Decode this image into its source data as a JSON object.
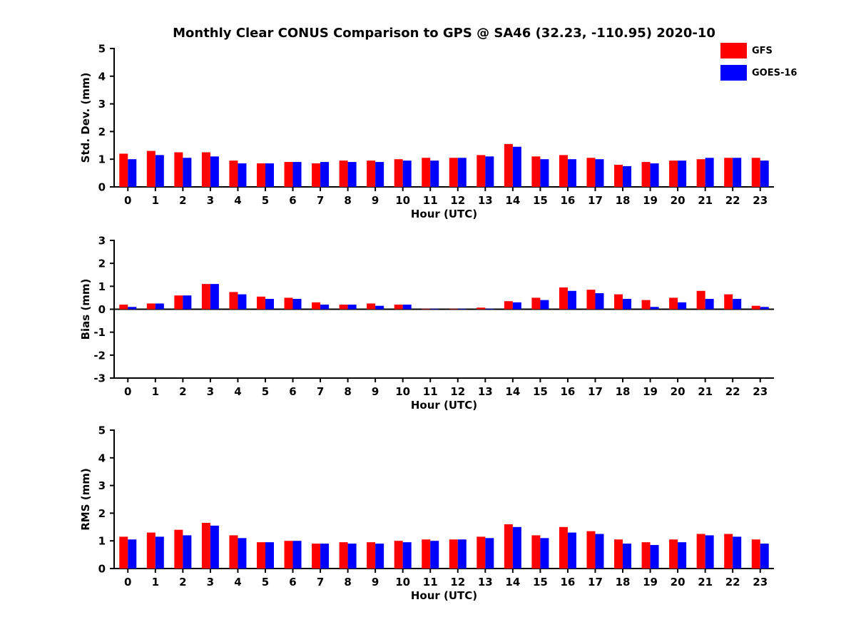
{
  "title": "Monthly Clear CONUS Comparison to GPS @ SA46 (32.23, -110.95) 2020-10",
  "legend": {
    "position": "top-right",
    "items": [
      {
        "label": "GFS",
        "color": "#ff0000"
      },
      {
        "label": "GOES-16",
        "color": "#0000ff"
      }
    ]
  },
  "chart_data": [
    {
      "type": "bar",
      "title": "Monthly Clear CONUS Comparison to GPS @ SA46 (32.23, -110.95) 2020-10",
      "categories": [
        "0",
        "1",
        "2",
        "3",
        "4",
        "5",
        "6",
        "7",
        "8",
        "9",
        "10",
        "11",
        "12",
        "13",
        "14",
        "15",
        "16",
        "17",
        "18",
        "19",
        "20",
        "21",
        "22",
        "23"
      ],
      "series": [
        {
          "name": "GFS",
          "color": "#ff0000",
          "values": [
            1.2,
            1.3,
            1.25,
            1.25,
            0.95,
            0.85,
            0.9,
            0.85,
            0.95,
            0.95,
            1.0,
            1.05,
            1.05,
            1.15,
            1.55,
            1.1,
            1.15,
            1.05,
            0.8,
            0.9,
            0.95,
            1.0,
            1.05,
            1.05
          ]
        },
        {
          "name": "GOES-16",
          "color": "#0000ff",
          "values": [
            1.0,
            1.15,
            1.05,
            1.1,
            0.85,
            0.85,
            0.9,
            0.9,
            0.9,
            0.9,
            0.95,
            0.95,
            1.05,
            1.1,
            1.45,
            1.0,
            1.0,
            1.0,
            0.75,
            0.85,
            0.95,
            1.05,
            1.05,
            0.95
          ]
        }
      ],
      "xlabel": "Hour (UTC)",
      "ylabel": "Std. Dev. (mm)",
      "ylim": [
        0,
        5
      ],
      "yticks": [
        0,
        1,
        2,
        3,
        4,
        5
      ],
      "grid": false,
      "legend_position": "top-right"
    },
    {
      "type": "bar",
      "title": "",
      "categories": [
        "0",
        "1",
        "2",
        "3",
        "4",
        "5",
        "6",
        "7",
        "8",
        "9",
        "10",
        "11",
        "12",
        "13",
        "14",
        "15",
        "16",
        "17",
        "18",
        "19",
        "20",
        "21",
        "22",
        "23"
      ],
      "series": [
        {
          "name": "GFS",
          "color": "#ff0000",
          "values": [
            0.2,
            0.25,
            0.6,
            1.1,
            0.75,
            0.55,
            0.5,
            0.3,
            0.2,
            0.25,
            0.2,
            0.02,
            0.02,
            0.07,
            0.35,
            0.5,
            0.95,
            0.85,
            0.65,
            0.4,
            0.5,
            0.8,
            0.65,
            0.15
          ]
        },
        {
          "name": "GOES-16",
          "color": "#0000ff",
          "values": [
            0.1,
            0.25,
            0.6,
            1.1,
            0.65,
            0.45,
            0.45,
            0.2,
            0.2,
            0.15,
            0.2,
            0.02,
            0.02,
            0.02,
            0.3,
            0.4,
            0.8,
            0.7,
            0.45,
            0.1,
            0.3,
            0.45,
            0.45,
            0.1
          ]
        }
      ],
      "xlabel": "Hour (UTC)",
      "ylabel": "Bias (mm)",
      "ylim": [
        -3,
        3
      ],
      "yticks": [
        -3,
        -2,
        -1,
        0,
        1,
        2,
        3
      ],
      "grid": false
    },
    {
      "type": "bar",
      "title": "",
      "categories": [
        "0",
        "1",
        "2",
        "3",
        "4",
        "5",
        "6",
        "7",
        "8",
        "9",
        "10",
        "11",
        "12",
        "13",
        "14",
        "15",
        "16",
        "17",
        "18",
        "19",
        "20",
        "21",
        "22",
        "23"
      ],
      "series": [
        {
          "name": "GFS",
          "color": "#ff0000",
          "values": [
            1.15,
            1.3,
            1.4,
            1.65,
            1.2,
            0.95,
            1.0,
            0.9,
            0.95,
            0.95,
            1.0,
            1.05,
            1.05,
            1.15,
            1.6,
            1.2,
            1.5,
            1.35,
            1.05,
            0.95,
            1.05,
            1.25,
            1.25,
            1.05
          ]
        },
        {
          "name": "GOES-16",
          "color": "#0000ff",
          "values": [
            1.05,
            1.15,
            1.2,
            1.55,
            1.1,
            0.95,
            1.0,
            0.9,
            0.9,
            0.9,
            0.95,
            1.0,
            1.05,
            1.1,
            1.5,
            1.1,
            1.3,
            1.25,
            0.9,
            0.85,
            0.95,
            1.2,
            1.15,
            0.9
          ]
        }
      ],
      "xlabel": "Hour (UTC)",
      "ylabel": "RMS (mm)",
      "ylim": [
        0,
        5
      ],
      "yticks": [
        0,
        1,
        2,
        3,
        4,
        5
      ],
      "grid": false
    }
  ]
}
